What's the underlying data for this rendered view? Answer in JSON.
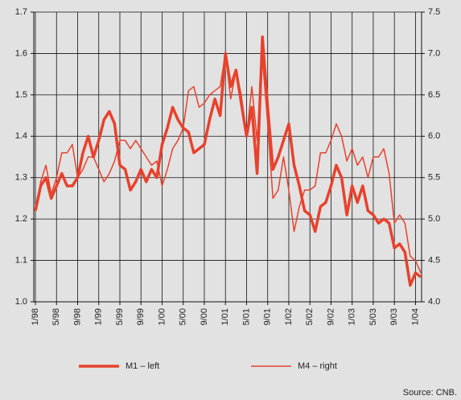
{
  "chart_data": {
    "type": "line",
    "categories": [
      "1/98",
      null,
      null,
      null,
      "5/98",
      null,
      null,
      null,
      "9/98",
      null,
      null,
      null,
      "1/99",
      null,
      null,
      null,
      "5/99",
      null,
      null,
      null,
      "9/99",
      null,
      null,
      null,
      "1/00",
      null,
      null,
      null,
      "5/00",
      null,
      null,
      null,
      "9/00",
      null,
      null,
      null,
      "1/01",
      null,
      null,
      null,
      "5/01",
      null,
      null,
      null,
      "9/01",
      null,
      null,
      null,
      "1/02",
      null,
      null,
      null,
      "5/02",
      null,
      null,
      null,
      "9/02",
      null,
      null,
      null,
      "1/03",
      null,
      null,
      null,
      "5/03",
      null,
      null,
      null,
      "9/03",
      null,
      null,
      null,
      "1/04",
      null
    ],
    "series": [
      {
        "name": "M1 – left",
        "color": "#e8412c",
        "values": [
          1.22,
          1.28,
          1.3,
          1.25,
          1.28,
          1.31,
          1.28,
          1.28,
          1.3,
          1.36,
          1.4,
          1.35,
          1.39,
          1.44,
          1.46,
          1.43,
          1.33,
          1.32,
          1.27,
          1.29,
          1.32,
          1.29,
          1.32,
          1.3,
          1.38,
          1.42,
          1.47,
          1.44,
          1.42,
          1.41,
          1.36,
          1.37,
          1.38,
          1.44,
          1.49,
          1.45,
          1.6,
          1.52,
          1.56,
          1.48,
          1.4,
          1.47,
          1.31,
          1.64,
          1.47,
          1.32,
          1.35,
          1.39,
          1.43,
          1.33,
          1.28,
          1.22,
          1.21,
          1.17,
          1.23,
          1.24,
          1.28,
          1.33,
          1.3,
          1.21,
          1.28,
          1.24,
          1.28,
          1.22,
          1.21,
          1.19,
          1.2,
          1.19,
          1.13,
          1.14,
          1.12,
          1.04,
          1.07,
          1.06
        ]
      },
      {
        "name": "M4 – right",
        "color": "#e8412c",
        "axis": "y2",
        "values": [
          5.1,
          5.45,
          5.65,
          5.3,
          5.5,
          5.8,
          5.8,
          5.9,
          5.5,
          5.6,
          5.75,
          5.75,
          5.6,
          5.45,
          5.55,
          5.7,
          5.95,
          5.95,
          5.85,
          5.95,
          5.85,
          5.75,
          5.65,
          5.7,
          5.4,
          5.6,
          5.85,
          5.95,
          6.1,
          6.55,
          6.6,
          6.35,
          6.4,
          6.5,
          6.55,
          6.6,
          7.0,
          6.45,
          6.8,
          6.5,
          6.0,
          6.6,
          5.95,
          6.95,
          6.15,
          5.25,
          5.35,
          5.75,
          5.35,
          4.85,
          5.15,
          5.35,
          5.35,
          5.4,
          5.8,
          5.8,
          5.95,
          6.15,
          6.0,
          5.7,
          5.85,
          5.65,
          5.75,
          5.5,
          5.75,
          5.75,
          5.85,
          5.55,
          4.95,
          5.05,
          4.95,
          4.55,
          4.5,
          4.35
        ]
      }
    ],
    "ylim": [
      1.0,
      1.7
    ],
    "yticks": [
      {
        "value": 1,
        "label": "1.0"
      },
      1.1,
      1.2,
      1.3,
      1.4,
      1.5,
      1.6,
      1.7
    ],
    "y2lim": [
      4.0,
      7.5
    ],
    "y2ticks": [
      {
        "value": 4,
        "label": "4.0"
      },
      4.5,
      {
        "value": 5,
        "label": "5.0"
      },
      5.5,
      {
        "value": 6,
        "label": "6.0"
      },
      6.5,
      {
        "value": 7,
        "label": "7.0"
      },
      7.5
    ],
    "grid": true,
    "source": "Source: CNB."
  }
}
